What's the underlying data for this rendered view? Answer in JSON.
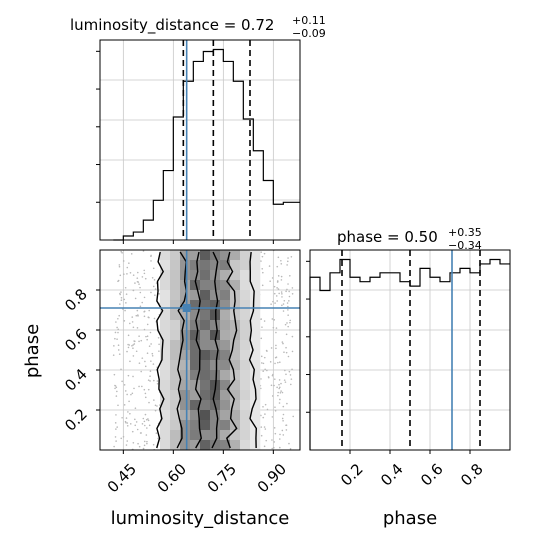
{
  "chart_data": {
    "type": "corner",
    "truth_color": "#4682b4",
    "line_color": "#000000",
    "parameters": [
      {
        "name": "luminosity_distance",
        "xlabel": "luminosity_distance",
        "title": {
          "prefix": "luminosity_distance = ",
          "value": "0.72",
          "plus": "+0.11",
          "minus": "−0.09"
        },
        "range": [
          0.38,
          0.98
        ],
        "ticks": [
          0.45,
          0.6,
          0.75,
          0.9
        ],
        "tick_labels": [
          "0.45",
          "0.60",
          "0.75",
          "0.90"
        ],
        "truth": 0.64,
        "quantiles": [
          0.63,
          0.72,
          0.83
        ],
        "histogram": {
          "edges": [
            0.42,
            0.45,
            0.48,
            0.51,
            0.54,
            0.57,
            0.6,
            0.63,
            0.66,
            0.69,
            0.72,
            0.75,
            0.78,
            0.81,
            0.84,
            0.87,
            0.9,
            0.93,
            0.96,
            0.98
          ],
          "values": [
            0,
            2,
            4,
            10,
            20,
            35,
            62,
            80,
            90,
            95,
            96,
            90,
            80,
            61,
            45,
            30,
            18,
            19,
            19
          ]
        }
      },
      {
        "name": "phase",
        "xlabel": "phase",
        "ylabel": "phase",
        "title": {
          "prefix": "phase = ",
          "value": "0.50",
          "plus": "+0.35",
          "minus": "−0.34"
        },
        "range": [
          0.0,
          1.0
        ],
        "ticks": [
          0.2,
          0.4,
          0.6,
          0.8
        ],
        "tick_labels": [
          "0.2",
          "0.4",
          "0.6",
          "0.8"
        ],
        "truth": 0.71,
        "quantiles": [
          0.16,
          0.5,
          0.85
        ],
        "histogram": {
          "edges": [
            0.0,
            0.05,
            0.1,
            0.15,
            0.2,
            0.25,
            0.3,
            0.35,
            0.4,
            0.45,
            0.5,
            0.55,
            0.6,
            0.65,
            0.7,
            0.75,
            0.8,
            0.85,
            0.9,
            0.95,
            1.0
          ],
          "values": [
            78,
            72,
            80,
            86,
            78,
            76,
            78,
            80,
            80,
            76,
            74,
            82,
            78,
            76,
            80,
            82,
            80,
            84,
            86,
            84
          ]
        }
      }
    ],
    "joint": {
      "x_param": "luminosity_distance",
      "y_param": "phase",
      "high_density_x_range": [
        0.57,
        0.83
      ]
    }
  }
}
